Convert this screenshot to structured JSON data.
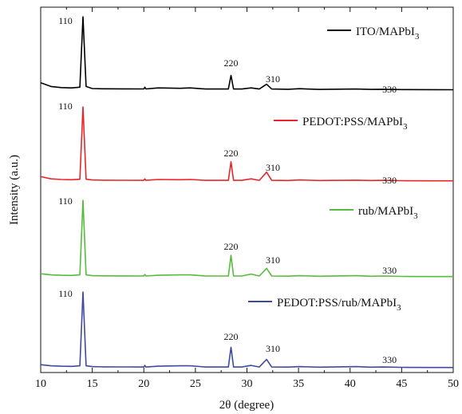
{
  "chart_data": {
    "type": "line",
    "xlabel": "2θ (degree)",
    "ylabel": "Intensity (a.u.)",
    "xlim": [
      10,
      50
    ],
    "x_ticks": [
      "10",
      "15",
      "20",
      "25",
      "30",
      "35",
      "40",
      "45",
      "50"
    ],
    "y_ticks": "none",
    "grid": false,
    "peaks": [
      {
        "x": 14.1,
        "label": "110"
      },
      {
        "x": 28.45,
        "label": "220"
      },
      {
        "x": 31.9,
        "label": "310"
      },
      {
        "x": 43.2,
        "label": "330"
      }
    ],
    "series": [
      {
        "name": "ITO/MAPbI3",
        "legend_main": "ITO/MAPbI",
        "legend_sub": "3",
        "color": "#000000",
        "x": [
          10,
          11,
          12,
          13,
          13.8,
          14.1,
          14.4,
          15,
          16,
          18,
          20,
          20.1,
          20.2,
          21.4,
          23.5,
          24.5,
          26,
          28.2,
          28.45,
          28.7,
          29.5,
          30.4,
          31.2,
          31.9,
          32.4,
          34,
          35.1,
          37,
          40.6,
          42,
          43.2,
          45,
          48,
          50
        ],
        "values": [
          10,
          5,
          3.5,
          3,
          4,
          100,
          5,
          2.2,
          1.8,
          1.7,
          1.6,
          4,
          1.6,
          3,
          2.5,
          3,
          1.5,
          1.5,
          20,
          1.5,
          1.5,
          3,
          1.5,
          8,
          1.5,
          1.2,
          2,
          1,
          1.5,
          1,
          1.2,
          0.8,
          0.6,
          0.5
        ]
      },
      {
        "name": "PEDOT:PSS/MAPbI3",
        "legend_main": "PEDOT:PSS/MAPbI",
        "legend_sub": "3",
        "color": "#e8262a",
        "x": [
          10,
          11,
          12,
          13,
          13.8,
          14.1,
          14.4,
          15,
          16,
          18,
          20,
          20.1,
          20.2,
          21.4,
          23.5,
          24.5,
          26,
          28.2,
          28.45,
          28.7,
          29.5,
          30.4,
          31.2,
          31.9,
          32.4,
          34,
          35.1,
          37,
          40.6,
          42,
          43.2,
          45,
          48,
          50
        ],
        "values": [
          6,
          3,
          2.2,
          1.8,
          2.5,
          100,
          2.5,
          1.5,
          1.2,
          1.1,
          1,
          3,
          1,
          2.2,
          1.8,
          2.2,
          1,
          1,
          26,
          1,
          1,
          3,
          1,
          12,
          1,
          0.8,
          1.5,
          0.7,
          1.2,
          0.7,
          1,
          0.5,
          0.3,
          0.3
        ]
      },
      {
        "name": "rub/MAPbI3",
        "legend_main": "rub/MAPbI",
        "legend_sub": "3",
        "color": "#57bb3d",
        "x": [
          10,
          11,
          12,
          13,
          13.8,
          14.1,
          14.4,
          15,
          16,
          18,
          20,
          20.1,
          20.2,
          21.4,
          23.5,
          24.5,
          26,
          28.2,
          28.45,
          28.7,
          29.5,
          30.4,
          31.2,
          31.9,
          32.4,
          34,
          35.1,
          37,
          40.6,
          42,
          43.2,
          45,
          48,
          50
        ],
        "values": [
          4,
          2.5,
          2,
          1.8,
          2.5,
          100,
          2.5,
          1.5,
          1.2,
          1.1,
          1,
          3,
          1,
          2,
          2.5,
          2.5,
          1,
          1,
          28,
          1,
          1,
          3.5,
          1,
          11,
          1,
          0.8,
          1.5,
          0.7,
          1.5,
          0.7,
          1,
          0.5,
          0.3,
          0.3
        ]
      },
      {
        "name": "PEDOT:PSS/rub/MAPbI3",
        "legend_main": "PEDOT:PSS/rub/MAPbI",
        "legend_sub": "3",
        "color": "#3f4a9e",
        "x": [
          10,
          11,
          12,
          13,
          13.8,
          14.1,
          14.4,
          15,
          16,
          18,
          20,
          20.1,
          20.2,
          21.4,
          23.5,
          24.5,
          26,
          28.2,
          28.45,
          28.7,
          29.5,
          30.4,
          31.2,
          31.9,
          32.4,
          34,
          35.1,
          37,
          40.6,
          42,
          43.2,
          45,
          48,
          50
        ],
        "values": [
          4,
          2.5,
          2,
          1.8,
          2.5,
          100,
          2.5,
          1.5,
          1.2,
          1.1,
          1,
          3,
          1,
          2,
          2.5,
          2.5,
          1,
          1,
          27,
          1,
          1,
          3,
          1,
          11,
          1,
          0.8,
          1.5,
          0.7,
          1.5,
          0.7,
          1,
          0.5,
          0.3,
          0.3
        ]
      }
    ]
  }
}
